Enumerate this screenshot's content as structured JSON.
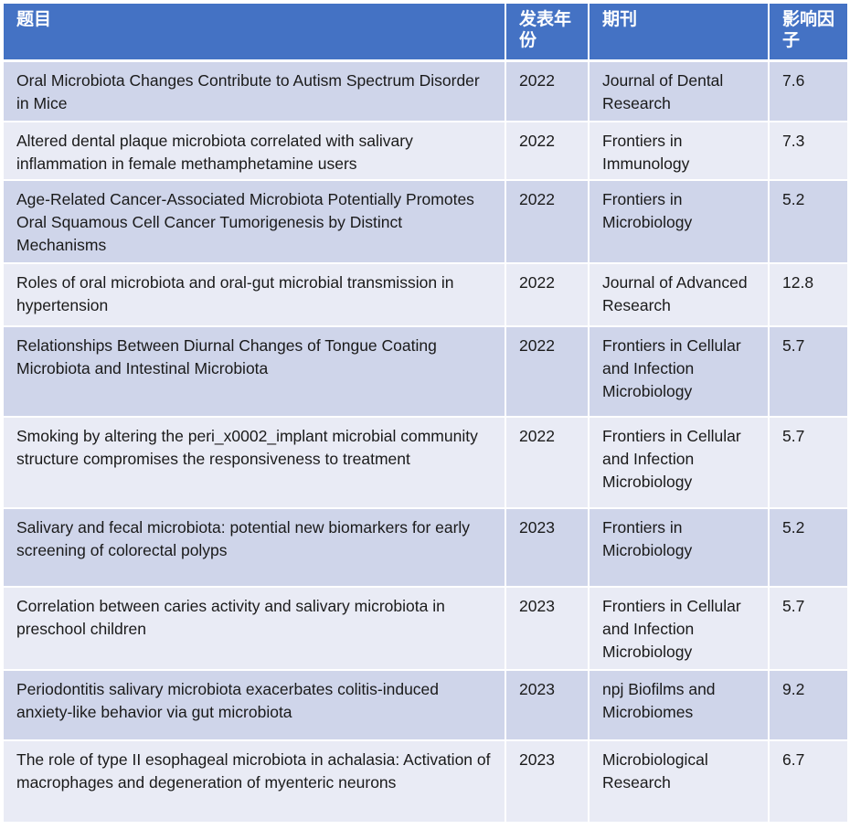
{
  "table": {
    "headers": {
      "title": "题目",
      "year": "发表年份",
      "journal": "期刊",
      "impact_factor": "影响因子"
    },
    "rows": [
      {
        "title": "Oral Microbiota Changes Contribute to Autism Spectrum Disorder in Mice",
        "year": "2022",
        "journal": "Journal of Dental Research",
        "impact_factor": "7.6"
      },
      {
        "title": "Altered dental plaque microbiota correlated with salivary inflammation in female methamphetamine users",
        "year": "2022",
        "journal": "Frontiers in Immunology",
        "impact_factor": "7.3"
      },
      {
        "title": "Age-Related Cancer-Associated Microbiota Potentially Promotes Oral Squamous Cell Cancer Tumorigenesis by Distinct Mechanisms",
        "year": "2022",
        "journal": "Frontiers in Microbiology",
        "impact_factor": "5.2"
      },
      {
        "title": "Roles of oral microbiota and oral-gut microbial transmission in hypertension",
        "year": "2022",
        "journal": "Journal of Advanced Research",
        "impact_factor": "12.8"
      },
      {
        "title": "Relationships Between Diurnal Changes of Tongue Coating Microbiota and Intestinal Microbiota",
        "year": "2022",
        "journal": "Frontiers in Cellular and Infection Microbiology",
        "impact_factor": "5.7"
      },
      {
        "title": "Smoking by altering the peri_x0002_implant microbial community structure compromises the responsiveness to treatment",
        "year": "2022",
        "journal": "Frontiers in Cellular and Infection Microbiology",
        "impact_factor": "5.7"
      },
      {
        "title": "Salivary and fecal microbiota: potential new biomarkers for early screening of colorectal polyps",
        "year": "2023",
        "journal": "Frontiers in Microbiology",
        "impact_factor": "5.2"
      },
      {
        "title": "Correlation between caries activity and salivary microbiota in preschool children",
        "year": "2023",
        "journal": "Frontiers in Cellular and Infection Microbiology",
        "impact_factor": "5.7"
      },
      {
        "title": "Periodontitis salivary microbiota exacerbates colitis-induced anxiety-like behavior via gut microbiota",
        "year": "2023",
        "journal": "npj Biofilms and Microbiomes",
        "impact_factor": "9.2"
      },
      {
        "title": "The role of type II esophageal microbiota in achalasia: Activation of macrophages and degeneration of myenteric neurons",
        "year": "2023",
        "journal": "Microbiological Research",
        "impact_factor": "6.7"
      }
    ]
  },
  "colors": {
    "header_bg": "#4472c4",
    "row_odd_bg": "#cfd5ea",
    "row_even_bg": "#e9ebf5",
    "header_text": "#ffffff"
  }
}
